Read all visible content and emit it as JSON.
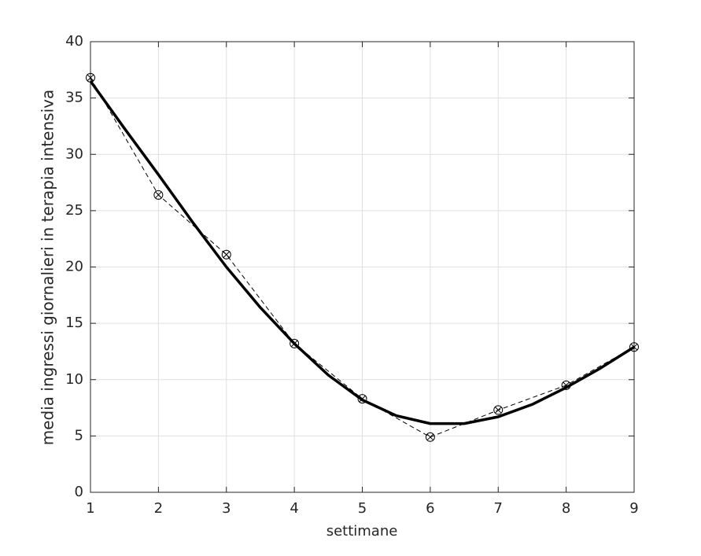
{
  "chart_data": {
    "type": "line",
    "x_label": "settimane",
    "y_label": "media ingressi giornalieri in terapia intensiva",
    "xlim": [
      1,
      9
    ],
    "xticks": [
      1,
      2,
      3,
      4,
      5,
      6,
      7,
      8,
      9
    ],
    "ylim": [
      0,
      40
    ],
    "yticks": [
      0,
      5,
      10,
      15,
      20,
      25,
      30,
      35,
      40
    ],
    "grid": true,
    "series": [
      {
        "color": "#000000",
        "line_style": "dashed",
        "marker": "circle-x",
        "x": [
          1,
          2,
          3,
          4,
          5,
          6,
          7,
          8,
          9
        ],
        "values": [
          36.8,
          26.4,
          21.1,
          13.2,
          8.3,
          4.9,
          7.3,
          9.5,
          12.9
        ]
      },
      {
        "color": "#000000",
        "line_style": "solid",
        "marker": "none",
        "x": [
          1,
          1.5,
          2,
          2.5,
          3,
          3.5,
          4,
          4.5,
          5,
          5.5,
          6,
          6.5,
          7,
          7.5,
          8,
          8.5,
          9
        ],
        "values": [
          36.5,
          32.3,
          28.2,
          24.0,
          20.0,
          16.4,
          13.2,
          10.4,
          8.2,
          6.8,
          6.1,
          6.1,
          6.7,
          7.8,
          9.3,
          11.0,
          12.9
        ]
      }
    ]
  }
}
